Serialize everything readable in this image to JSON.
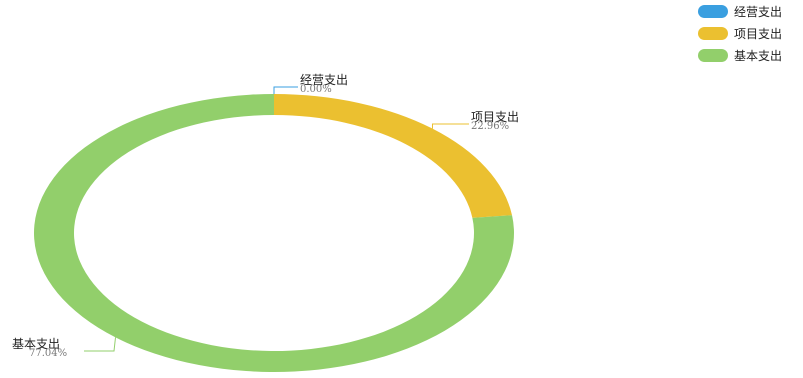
{
  "chart_data": {
    "type": "pie",
    "donut": true,
    "title": "",
    "slices": [
      {
        "name": "经营支出",
        "value": 0.0,
        "label": "0.00%",
        "color": "#3a9fe0"
      },
      {
        "name": "项目支出",
        "value": 22.96,
        "label": "22.96%",
        "color": "#ebc030"
      },
      {
        "name": "基本支出",
        "value": 77.04,
        "label": "77.04%",
        "color": "#92cf6b"
      }
    ],
    "legend": {
      "placement": "top-right",
      "entries": [
        "经营支出",
        "项目支出",
        "基本支出"
      ]
    }
  }
}
